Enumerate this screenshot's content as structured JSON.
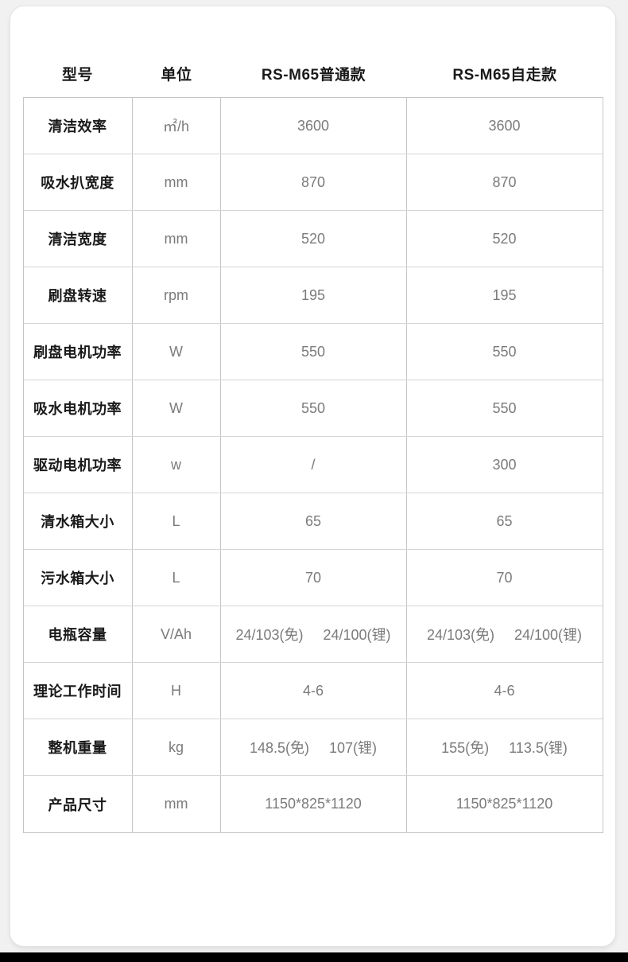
{
  "page": {
    "background_color": "#f1f1f2",
    "bottom_bar_color": "#000000"
  },
  "card": {
    "background_color": "#ffffff",
    "border_color": "#e3e3e3"
  },
  "table": {
    "border_color": "#c5c5c5",
    "label_color": "#1a1a1a",
    "value_color": "#7b7b7b",
    "headers": [
      "型号",
      "单位",
      "RS-M65普通款",
      "RS-M65自走款"
    ],
    "rows": [
      {
        "label": "清洁效率",
        "unit": "㎡/h",
        "standard": "3600",
        "self_propelled": "3600"
      },
      {
        "label": "吸水扒宽度",
        "unit": "mm",
        "standard": "870",
        "self_propelled": "870"
      },
      {
        "label": "清洁宽度",
        "unit": "mm",
        "standard": "520",
        "self_propelled": "520"
      },
      {
        "label": "刷盘转速",
        "unit": "rpm",
        "standard": "195",
        "self_propelled": "195"
      },
      {
        "label": "刷盘电机功率",
        "unit": "W",
        "standard": "550",
        "self_propelled": "550"
      },
      {
        "label": "吸水电机功率",
        "unit": "W",
        "standard": "550",
        "self_propelled": "550"
      },
      {
        "label": "驱动电机功率",
        "unit": "w",
        "standard": "/",
        "self_propelled": "300"
      },
      {
        "label": "清水箱大小",
        "unit": "L",
        "standard": "65",
        "self_propelled": "65"
      },
      {
        "label": "污水箱大小",
        "unit": "L",
        "standard": "70",
        "self_propelled": "70"
      },
      {
        "label": "电瓶容量",
        "unit": "V/Ah",
        "standard": "24/103(免)     24/100(锂)",
        "self_propelled": "24/103(免)     24/100(锂)"
      },
      {
        "label": "理论工作时间",
        "unit": "H",
        "standard": "4-6",
        "self_propelled": "4-6"
      },
      {
        "label": "整机重量",
        "unit": "kg",
        "standard": "148.5(免)     107(锂)",
        "self_propelled": "155(免)     113.5(锂)"
      },
      {
        "label": "产品尺寸",
        "unit": "mm",
        "standard": "1150*825*1120",
        "self_propelled": "1150*825*1120"
      }
    ]
  }
}
